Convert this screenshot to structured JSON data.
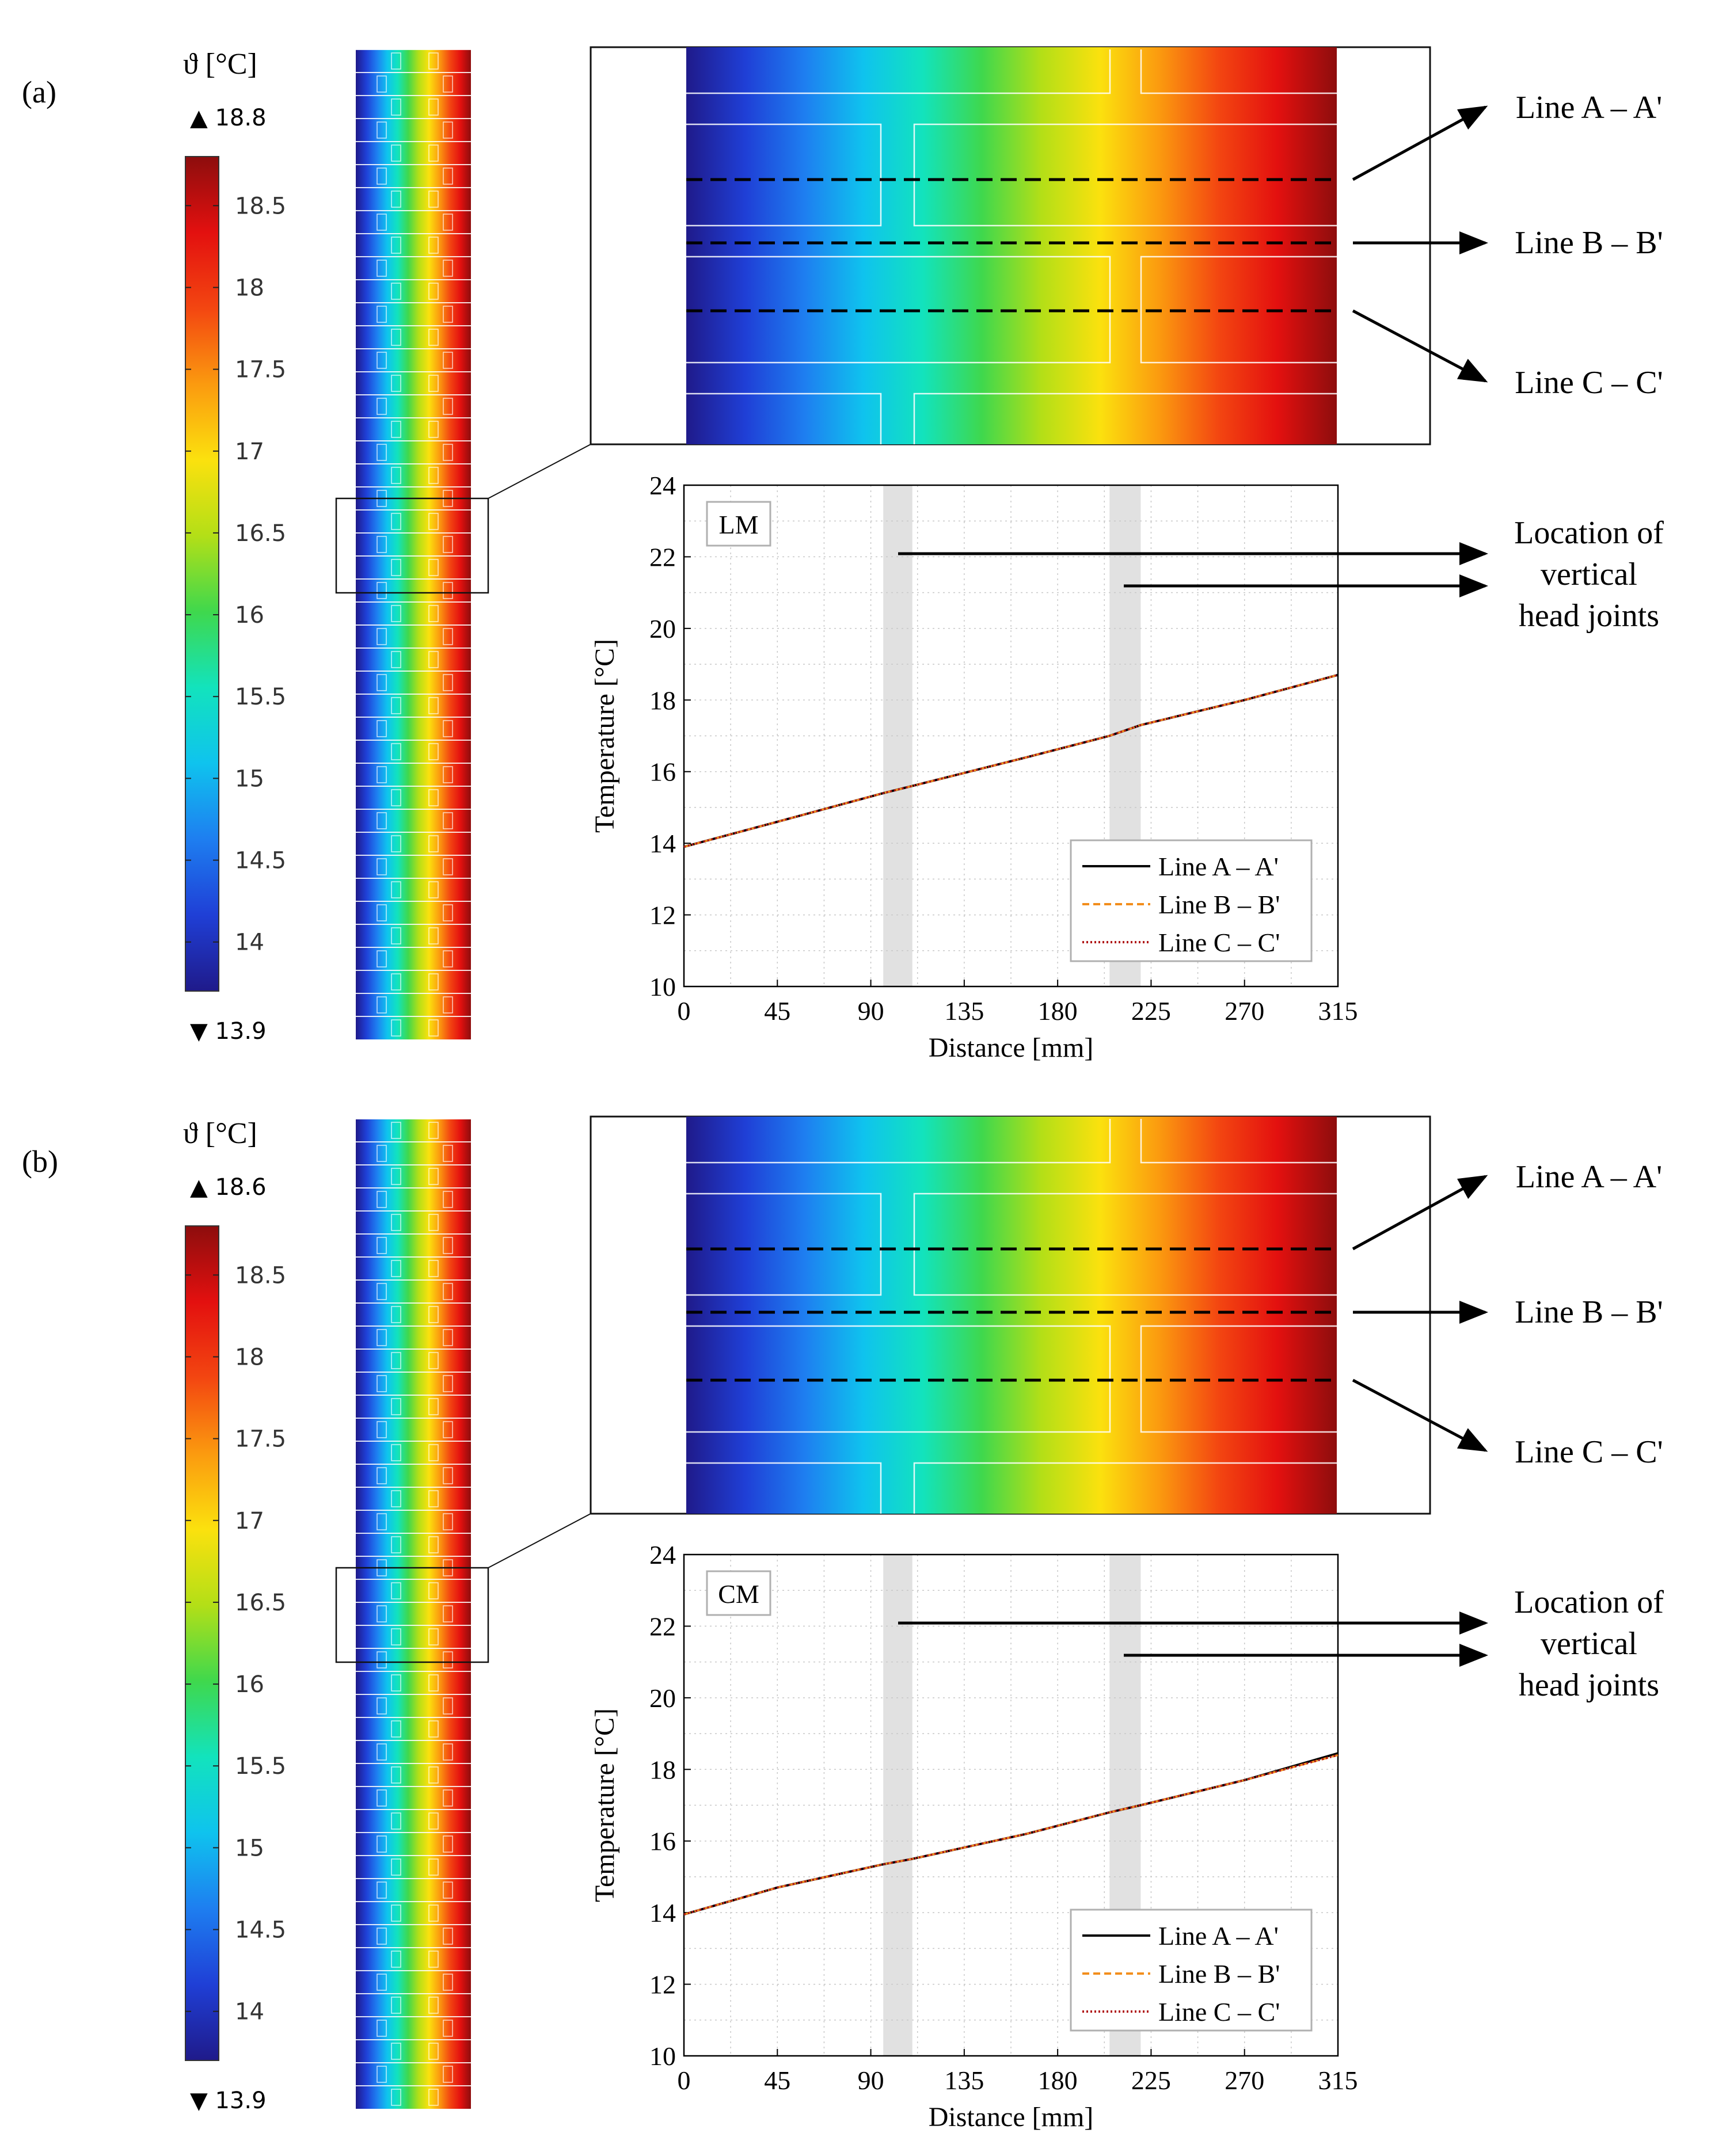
{
  "colormap": [
    "#1f1a8a",
    "#1f3fd6",
    "#1e7ef0",
    "#0fc3ee",
    "#12e3bd",
    "#3fd84d",
    "#b3df17",
    "#fbe10e",
    "#fb9a0f",
    "#f34611",
    "#e3100f",
    "#8d0d0d"
  ],
  "panels": [
    {
      "letter": "(a)",
      "colorbar": {
        "title": "ϑ [°C]",
        "max_label": "▲ 18.8",
        "min_label": "▼ 13.9",
        "range": [
          13.7,
          18.8
        ],
        "ticks": [
          "18.5",
          "18",
          "17.5",
          "17",
          "16.5",
          "16",
          "15.5",
          "15",
          "14.5",
          "14"
        ],
        "tick_values": [
          18.5,
          18,
          17.5,
          17,
          16.5,
          16,
          15.5,
          15,
          14.5,
          14
        ]
      },
      "field_range": [
        13.9,
        18.8
      ],
      "inset_label": "LM",
      "line_labels": [
        "Line A – A'",
        "Line B – B'",
        "Line C – C'"
      ],
      "joint_label": [
        "Location of",
        "vertical",
        "head joints"
      ],
      "chart_data": {
        "type": "line",
        "title": "",
        "xlabel": "Distance [mm]",
        "ylabel": "Temperature [°C]",
        "xlim": [
          0,
          315
        ],
        "ylim": [
          10,
          24
        ],
        "x_ticks": [
          0,
          45,
          90,
          135,
          180,
          225,
          270,
          315
        ],
        "y_ticks": [
          10,
          12,
          14,
          16,
          18,
          20,
          22,
          24
        ],
        "head_joints_mm": [
          [
            96,
            110
          ],
          [
            205,
            220
          ]
        ],
        "legend": [
          "Line A – A'",
          "Line B – B'",
          "Line C – C'"
        ],
        "legend_position": "bottom-right",
        "grid": true,
        "series": [
          {
            "name": "Line A – A'",
            "style": "solid",
            "color": "#000000",
            "x": [
              0,
              45,
              96,
              110,
              165,
              205,
              220,
              270,
              315
            ],
            "y": [
              13.9,
              14.6,
              15.4,
              15.6,
              16.4,
              17.0,
              17.3,
              18.0,
              18.7
            ]
          },
          {
            "name": "Line B – B'",
            "style": "dashed",
            "color": "#f28e1c",
            "x": [
              0,
              45,
              96,
              110,
              165,
              205,
              220,
              270,
              315
            ],
            "y": [
              13.9,
              14.6,
              15.4,
              15.6,
              16.4,
              17.0,
              17.3,
              18.0,
              18.7
            ]
          },
          {
            "name": "Line C – C'",
            "style": "dotted",
            "color": "#b01818",
            "x": [
              0,
              45,
              96,
              110,
              165,
              205,
              220,
              270,
              315
            ],
            "y": [
              13.9,
              14.6,
              15.4,
              15.6,
              16.4,
              17.0,
              17.3,
              18.0,
              18.7
            ]
          }
        ]
      }
    },
    {
      "letter": "(b)",
      "colorbar": {
        "title": "ϑ [°C]",
        "max_label": "▲ 18.6",
        "min_label": "▼ 13.9",
        "range": [
          13.7,
          18.8
        ],
        "ticks": [
          "18.5",
          "18",
          "17.5",
          "17",
          "16.5",
          "16",
          "15.5",
          "15",
          "14.5",
          "14"
        ],
        "tick_values": [
          18.5,
          18,
          17.5,
          17,
          16.5,
          16,
          15.5,
          15,
          14.5,
          14
        ]
      },
      "field_range": [
        13.9,
        18.6
      ],
      "inset_label": "CM",
      "line_labels": [
        "Line A – A'",
        "Line B – B'",
        "Line C – C'"
      ],
      "joint_label": [
        "Location of",
        "vertical",
        "head joints"
      ],
      "chart_data": {
        "type": "line",
        "title": "",
        "xlabel": "Distance [mm]",
        "ylabel": "Temperature [°C]",
        "xlim": [
          0,
          315
        ],
        "ylim": [
          10,
          24
        ],
        "x_ticks": [
          0,
          45,
          90,
          135,
          180,
          225,
          270,
          315
        ],
        "y_ticks": [
          10,
          12,
          14,
          16,
          18,
          20,
          22,
          24
        ],
        "head_joints_mm": [
          [
            96,
            110
          ],
          [
            205,
            220
          ]
        ],
        "legend": [
          "Line A – A'",
          "Line B – B'",
          "Line C – C'"
        ],
        "legend_position": "bottom-right",
        "grid": true,
        "series": [
          {
            "name": "Line A – A'",
            "style": "solid",
            "color": "#000000",
            "x": [
              0,
              45,
              96,
              110,
              165,
              205,
              220,
              270,
              315
            ],
            "y": [
              13.95,
              14.7,
              15.35,
              15.5,
              16.2,
              16.8,
              17.0,
              17.7,
              18.45
            ]
          },
          {
            "name": "Line B – B'",
            "style": "dashed",
            "color": "#f28e1c",
            "x": [
              0,
              45,
              96,
              110,
              165,
              205,
              220,
              270,
              315
            ],
            "y": [
              13.95,
              14.7,
              15.35,
              15.5,
              16.2,
              16.8,
              17.0,
              17.7,
              18.4
            ]
          },
          {
            "name": "Line C – C'",
            "style": "dotted",
            "color": "#b01818",
            "x": [
              0,
              45,
              96,
              110,
              165,
              205,
              220,
              270,
              315
            ],
            "y": [
              13.95,
              14.7,
              15.35,
              15.5,
              16.2,
              16.8,
              17.0,
              17.7,
              18.4
            ]
          }
        ]
      }
    }
  ]
}
